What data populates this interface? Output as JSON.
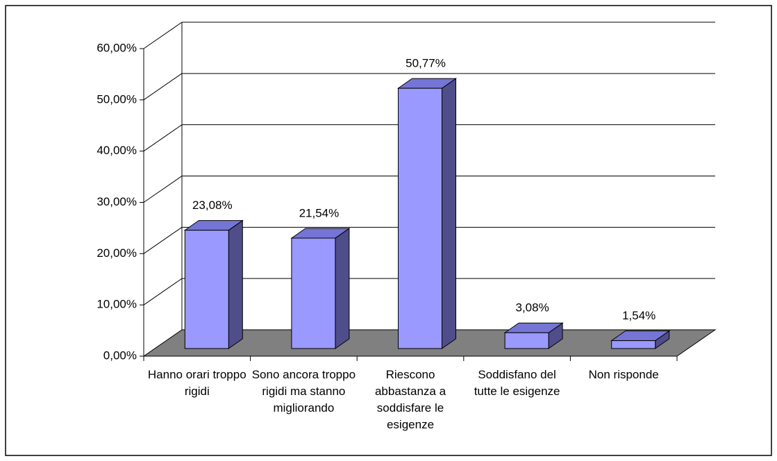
{
  "chart_data": {
    "type": "bar3d",
    "categories": [
      "Hanno orari troppo rigidi",
      "Sono ancora troppo rigidi ma stanno migliorando",
      "Riescono abbastanza a soddisfare le esigenze",
      "Soddisfano del tutte le esigenze",
      "Non risponde"
    ],
    "values": [
      23.08,
      21.54,
      50.77,
      3.08,
      1.54
    ],
    "value_labels": [
      "23,08%",
      "21,54%",
      "50,77%",
      "3,08%",
      "1,54%"
    ],
    "color": "#9999ff",
    "floor_color": "#808080",
    "ylim": [
      0,
      60
    ],
    "yticks": [
      {
        "value": 0,
        "label": "0,00%"
      },
      {
        "value": 10,
        "label": "10,00%"
      },
      {
        "value": 20,
        "label": "20,00%"
      },
      {
        "value": 30,
        "label": "30,00%"
      },
      {
        "value": 40,
        "label": "40,00%"
      },
      {
        "value": 50,
        "label": "50,00%"
      },
      {
        "value": 60,
        "label": "60,00%"
      }
    ],
    "grid": true
  }
}
